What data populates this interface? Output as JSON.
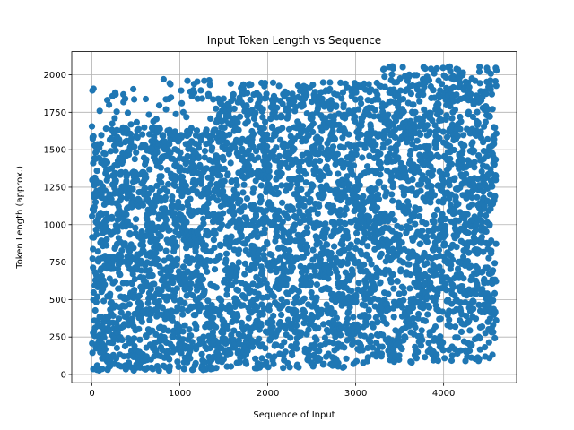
{
  "chart_data": {
    "type": "scatter",
    "title": "Input Token Length vs Sequence",
    "xlabel": "Sequence of Input",
    "ylabel": "Token Length (approx.)",
    "xlim": [
      -230,
      4830
    ],
    "ylim": [
      -55,
      2155
    ],
    "xticks": [
      0,
      1000,
      2000,
      3000,
      4000
    ],
    "xtick_labels": [
      "0",
      "1000",
      "2000",
      "3000",
      "4000"
    ],
    "yticks": [
      0,
      250,
      500,
      750,
      1000,
      1250,
      1500,
      1750,
      2000
    ],
    "ytick_labels": [
      "0",
      "250",
      "500",
      "750",
      "1000",
      "1250",
      "1500",
      "1750",
      "2000"
    ],
    "grid": true,
    "legend": "none",
    "marker_color": "#1f77b4",
    "n_points": 4600,
    "point_x_range": [
      0,
      4600
    ],
    "point_y_range": [
      25,
      2060
    ],
    "regions": [
      {
        "x_range": [
          0,
          1400
        ],
        "y_range": [
          25,
          1650
        ],
        "density": "high",
        "note": "sparse outliers up to 1980"
      },
      {
        "x_range": [
          1400,
          3300
        ],
        "y_range": [
          40,
          1950
        ],
        "density": "high"
      },
      {
        "x_range": [
          3300,
          4600
        ],
        "y_range": [
          80,
          2060
        ],
        "density": "high",
        "note": "densest above 400"
      }
    ]
  }
}
